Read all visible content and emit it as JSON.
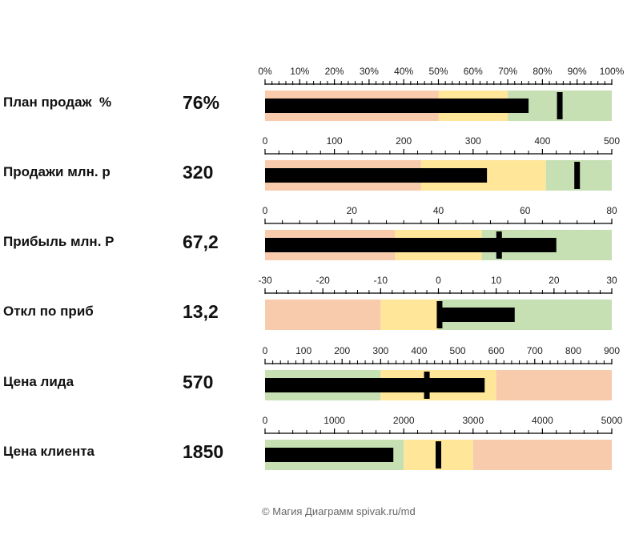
{
  "chart_data": [
    {
      "type": "bullet",
      "label": "План продаж  %",
      "value_label": "76%",
      "value": 76,
      "target": 85,
      "xlim": [
        0,
        100
      ],
      "ticks": [
        "0%",
        "10%",
        "20%",
        "30%",
        "40%",
        "50%",
        "60%",
        "70%",
        "80%",
        "90%",
        "100%"
      ],
      "tick_values": [
        0,
        10,
        20,
        30,
        40,
        50,
        60,
        70,
        80,
        90,
        100
      ],
      "bands": [
        {
          "from": 0,
          "to": 50,
          "color": "#f8cbad"
        },
        {
          "from": 50,
          "to": 70,
          "color": "#ffe699"
        },
        {
          "from": 70,
          "to": 100,
          "color": "#c6e0b4"
        }
      ]
    },
    {
      "type": "bullet",
      "label": "Продажи млн. р",
      "value_label": "320",
      "value": 320,
      "target": 450,
      "xlim": [
        0,
        500
      ],
      "ticks": [
        "0",
        "100",
        "200",
        "300",
        "400",
        "500"
      ],
      "tick_values": [
        0,
        100,
        200,
        300,
        400,
        500
      ],
      "bands": [
        {
          "from": 0,
          "to": 225,
          "color": "#f8cbad"
        },
        {
          "from": 225,
          "to": 405,
          "color": "#ffe699"
        },
        {
          "from": 405,
          "to": 500,
          "color": "#c6e0b4"
        }
      ]
    },
    {
      "type": "bullet",
      "label": "Прибыль млн. Р",
      "value_label": "67,2",
      "value": 67.2,
      "target": 54,
      "xlim": [
        0,
        80
      ],
      "ticks": [
        "0",
        "20",
        "40",
        "60",
        "80"
      ],
      "tick_values": [
        0,
        20,
        40,
        60,
        80
      ],
      "bands": [
        {
          "from": 0,
          "to": 30,
          "color": "#f8cbad"
        },
        {
          "from": 30,
          "to": 50,
          "color": "#ffe699"
        },
        {
          "from": 50,
          "to": 80,
          "color": "#c6e0b4"
        }
      ]
    },
    {
      "type": "bullet",
      "label": "Откл по приб",
      "value_label": "13,2",
      "value": 13.2,
      "base": 0,
      "target": 0.2,
      "xlim": [
        -30,
        30
      ],
      "ticks": [
        "-30",
        "-20",
        "-10",
        "0",
        "10",
        "20",
        "30"
      ],
      "tick_values": [
        -30,
        -20,
        -10,
        0,
        10,
        20,
        30
      ],
      "bands": [
        {
          "from": -30,
          "to": -10,
          "color": "#f8cbad"
        },
        {
          "from": -10,
          "to": 0,
          "color": "#ffe699"
        },
        {
          "from": 0,
          "to": 30,
          "color": "#c6e0b4"
        }
      ]
    },
    {
      "type": "bullet",
      "label": "Цена лида",
      "value_label": "570",
      "value": 570,
      "target": 420,
      "xlim": [
        0,
        900
      ],
      "ticks": [
        "0",
        "100",
        "200",
        "300",
        "400",
        "500",
        "600",
        "700",
        "800",
        "900"
      ],
      "tick_values": [
        0,
        100,
        200,
        300,
        400,
        500,
        600,
        700,
        800,
        900
      ],
      "bands": [
        {
          "from": 0,
          "to": 300,
          "color": "#c6e0b4"
        },
        {
          "from": 300,
          "to": 600,
          "color": "#ffe699"
        },
        {
          "from": 600,
          "to": 900,
          "color": "#f8cbad"
        }
      ]
    },
    {
      "type": "bullet",
      "label": "Цена клиента",
      "value_label": "1850",
      "value": 1850,
      "target": 2500,
      "xlim": [
        0,
        5000
      ],
      "ticks": [
        "0",
        "1000",
        "2000",
        "3000",
        "4000",
        "5000"
      ],
      "tick_values": [
        0,
        1000,
        2000,
        3000,
        4000,
        5000
      ],
      "bands": [
        {
          "from": 0,
          "to": 2000,
          "color": "#c6e0b4"
        },
        {
          "from": 2000,
          "to": 3000,
          "color": "#ffe699"
        },
        {
          "from": 3000,
          "to": 5000,
          "color": "#f8cbad"
        }
      ]
    }
  ],
  "footer": "© Магия Диаграмм spivak.ru/md",
  "colors": {
    "bar": "#000000",
    "target": "#000000",
    "axis": "#000000",
    "tick_text": "#222222"
  }
}
